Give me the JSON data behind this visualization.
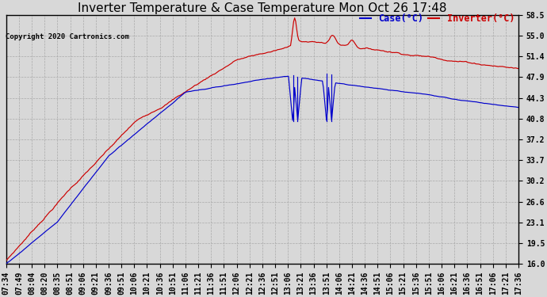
{
  "title": "Inverter Temperature & Case Temperature Mon Oct 26 17:48",
  "copyright": "Copyright 2020 Cartronics.com",
  "legend_case": "Case(°C)",
  "legend_inverter": "Inverter(°C)",
  "yticks": [
    16.0,
    19.5,
    23.1,
    26.6,
    30.2,
    33.7,
    37.2,
    40.8,
    44.3,
    47.9,
    51.4,
    55.0,
    58.5
  ],
  "ylim": [
    16.0,
    58.5
  ],
  "xtick_labels": [
    "07:34",
    "07:49",
    "08:04",
    "08:20",
    "08:35",
    "08:51",
    "09:06",
    "09:21",
    "09:36",
    "09:51",
    "10:06",
    "10:21",
    "10:36",
    "10:51",
    "11:06",
    "11:21",
    "11:36",
    "11:51",
    "12:06",
    "12:21",
    "12:36",
    "12:51",
    "13:06",
    "13:21",
    "13:36",
    "13:51",
    "14:06",
    "14:21",
    "14:36",
    "14:51",
    "15:06",
    "15:21",
    "15:36",
    "15:51",
    "16:06",
    "16:21",
    "16:36",
    "16:51",
    "17:06",
    "17:21",
    "17:36"
  ],
  "bg_color": "#d8d8d8",
  "plot_bg": "#d8d8d8",
  "grid_color": "#aaaaaa",
  "line_color_red": "#cc0000",
  "line_color_blue": "#0000cc",
  "title_fontsize": 11,
  "tick_fontsize": 7,
  "legend_fontsize": 8.5
}
